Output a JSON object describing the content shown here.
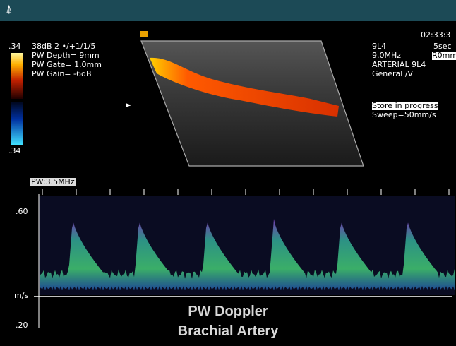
{
  "header": {
    "icon": "⍋"
  },
  "left_panel": {
    "scale_top": ".34",
    "line1": "38dB  2 •/+1/1/5",
    "line2": "PW Depth=  9mm",
    "line3": "PW Gate= 1.0mm",
    "line4": "PW Gain= -6dB",
    "scale_bottom": ".34"
  },
  "right_panel": {
    "time": "02:33:3",
    "sweep_time": "5sec",
    "depth": "R0mm",
    "probe": "9L4",
    "frequency": "9.0MHz",
    "preset": "ARTERIAL 9L4",
    "mode": "General /V",
    "status": "Store in progress",
    "sweep": "Sweep=50mm/s"
  },
  "spectral": {
    "pw_label": "PW:3.5MHz",
    "scale_top": ".60",
    "unit": "m/s",
    "scale_bottom": ".20"
  },
  "caption": {
    "line1": "PW Doppler",
    "line2": "Brachial Artery"
  }
}
